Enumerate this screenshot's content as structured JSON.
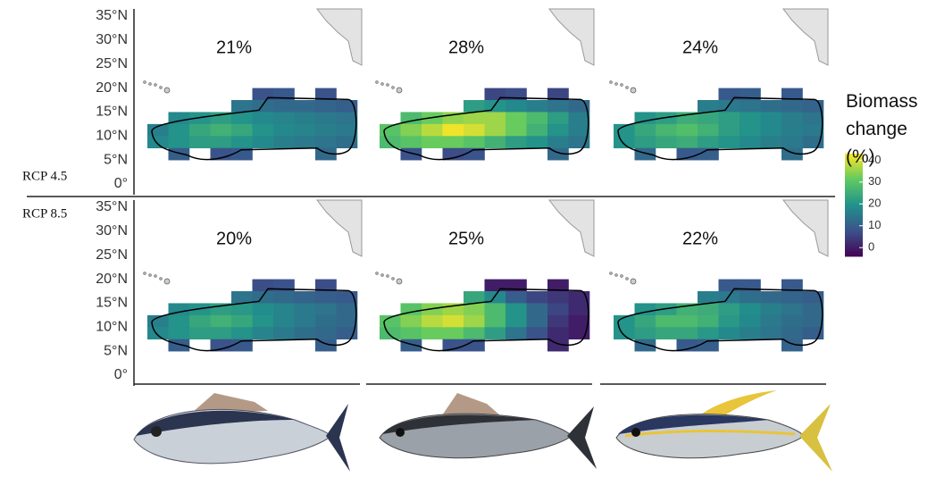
{
  "chart_data": {
    "type": "heatmap",
    "ylim": [
      0,
      35
    ],
    "yticks": [
      {
        "value": 35,
        "label": "35°N"
      },
      {
        "value": 30,
        "label": "30°N"
      },
      {
        "value": 25,
        "label": "25°N"
      },
      {
        "value": 20,
        "label": "20°N"
      },
      {
        "value": 15,
        "label": "15°N"
      },
      {
        "value": 10,
        "label": "10°N"
      },
      {
        "value": 5,
        "label": "5°N"
      },
      {
        "value": 0,
        "label": "0°"
      }
    ],
    "y": [
      18.75,
      16.25,
      13.75,
      11.25,
      8.75,
      6.25
    ],
    "categories": [
      null,
      null,
      null,
      null,
      null,
      null,
      null,
      null,
      null,
      null
    ],
    "colorbar": {
      "title": "Biomass change (%)",
      "lim": [
        -4,
        43
      ],
      "ticks": [
        0,
        10,
        20,
        30,
        40
      ]
    },
    "scenarios": [
      {
        "name": "RCP 4.5",
        "panels": [
          {
            "value": 21,
            "value_label": "21%",
            "values": [
              [
                null,
                null,
                null,
                null,
                null,
                8,
                9,
                null,
                8,
                null
              ],
              [
                null,
                null,
                null,
                null,
                14,
                13,
                12,
                12,
                11,
                10
              ],
              [
                null,
                18,
                20,
                22,
                20,
                18,
                17,
                16,
                15,
                14
              ],
              [
                16,
                20,
                24,
                26,
                24,
                20,
                18,
                17,
                16,
                15
              ],
              [
                18,
                20,
                22,
                22,
                20,
                18,
                16,
                15,
                14,
                13
              ],
              [
                null,
                10,
                null,
                8,
                9,
                null,
                null,
                null,
                12,
                null
              ]
            ]
          },
          {
            "value": 28,
            "value_label": "28%",
            "values": [
              [
                null,
                null,
                null,
                null,
                null,
                6,
                7,
                null,
                6,
                null
              ],
              [
                null,
                null,
                null,
                null,
                22,
                20,
                18,
                16,
                14,
                12
              ],
              [
                null,
                28,
                32,
                35,
                36,
                36,
                32,
                28,
                22,
                16
              ],
              [
                30,
                34,
                38,
                42,
                40,
                36,
                32,
                26,
                20,
                16
              ],
              [
                28,
                30,
                32,
                32,
                30,
                26,
                22,
                20,
                16,
                14
              ],
              [
                null,
                8,
                null,
                7,
                8,
                null,
                null,
                null,
                12,
                null
              ]
            ]
          },
          {
            "value": 24,
            "value_label": "24%",
            "values": [
              [
                null,
                null,
                null,
                null,
                null,
                9,
                10,
                null,
                9,
                null
              ],
              [
                null,
                null,
                null,
                null,
                16,
                15,
                14,
                13,
                12,
                11
              ],
              [
                null,
                20,
                22,
                25,
                24,
                22,
                20,
                18,
                16,
                14
              ],
              [
                20,
                24,
                27,
                29,
                26,
                22,
                20,
                18,
                16,
                15
              ],
              [
                20,
                22,
                24,
                25,
                22,
                20,
                18,
                16,
                15,
                13
              ],
              [
                null,
                12,
                null,
                9,
                10,
                null,
                null,
                null,
                13,
                null
              ]
            ]
          }
        ]
      },
      {
        "name": "RCP 8.5",
        "panels": [
          {
            "value": 20,
            "value_label": "20%",
            "values": [
              [
                null,
                null,
                null,
                null,
                null,
                7,
                8,
                null,
                7,
                null
              ],
              [
                null,
                null,
                null,
                null,
                14,
                13,
                12,
                11,
                10,
                9
              ],
              [
                null,
                18,
                20,
                22,
                21,
                19,
                17,
                15,
                14,
                12
              ],
              [
                16,
                20,
                24,
                26,
                24,
                20,
                17,
                15,
                13,
                12
              ],
              [
                18,
                20,
                22,
                22,
                20,
                17,
                15,
                13,
                12,
                10
              ],
              [
                null,
                10,
                null,
                8,
                9,
                null,
                null,
                null,
                10,
                null
              ]
            ]
          },
          {
            "value": 25,
            "value_label": "25%",
            "values": [
              [
                null,
                null,
                null,
                null,
                null,
                0,
                0,
                null,
                0,
                null
              ],
              [
                null,
                null,
                null,
                null,
                24,
                18,
                10,
                6,
                4,
                2
              ],
              [
                null,
                30,
                34,
                36,
                34,
                28,
                20,
                12,
                6,
                2
              ],
              [
                30,
                34,
                38,
                40,
                36,
                28,
                20,
                12,
                4,
                0
              ],
              [
                28,
                30,
                32,
                32,
                28,
                22,
                14,
                8,
                2,
                0
              ],
              [
                null,
                10,
                null,
                8,
                8,
                null,
                null,
                null,
                2,
                null
              ]
            ]
          },
          {
            "value": 22,
            "value_label": "22%",
            "values": [
              [
                null,
                null,
                null,
                null,
                null,
                9,
                9,
                null,
                9,
                null
              ],
              [
                null,
                null,
                null,
                null,
                16,
                15,
                13,
                12,
                11,
                10
              ],
              [
                null,
                20,
                22,
                26,
                25,
                22,
                19,
                16,
                14,
                12
              ],
              [
                20,
                24,
                28,
                28,
                26,
                21,
                18,
                15,
                13,
                12
              ],
              [
                20,
                22,
                24,
                24,
                21,
                18,
                16,
                14,
                12,
                10
              ],
              [
                null,
                12,
                null,
                9,
                10,
                null,
                null,
                null,
                11,
                null
              ]
            ]
          }
        ]
      }
    ]
  }
}
